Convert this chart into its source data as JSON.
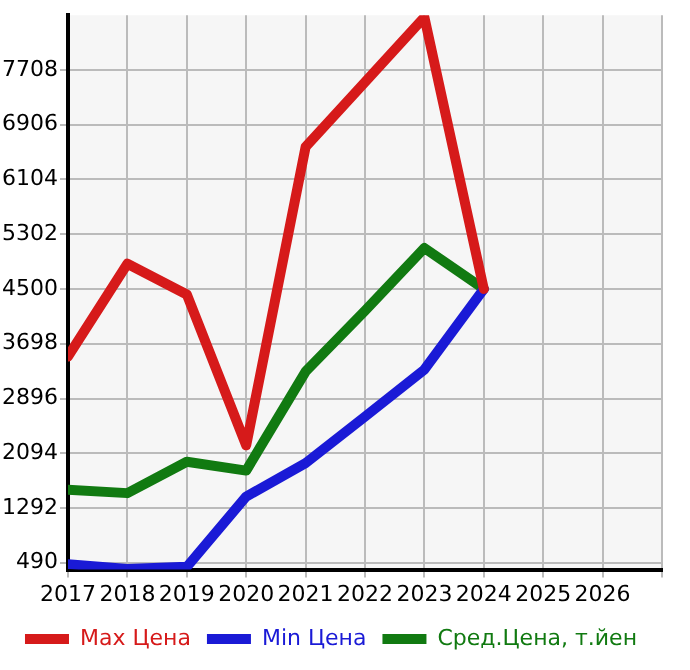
{
  "chart_data": {
    "type": "line",
    "x": [
      2017,
      2018,
      2019,
      2020,
      2021,
      2022,
      2023,
      2024
    ],
    "series": [
      {
        "name": "Max Цена",
        "color": "#d61a1a",
        "values": [
          3510,
          4870,
          4420,
          2210,
          6580,
          7530,
          8480,
          4500
        ]
      },
      {
        "name": "Min Цена",
        "color": "#1a1ad6",
        "values": [
          470,
          400,
          430,
          1460,
          1950,
          2630,
          3320,
          4500
        ]
      },
      {
        "name": "Сред.Цена, т.йен",
        "color": "#117a11",
        "values": [
          1560,
          1510,
          1970,
          1840,
          3290,
          4180,
          5100,
          4500
        ]
      }
    ],
    "xlim": [
      2017,
      2027
    ],
    "xticks": [
      2017,
      2018,
      2019,
      2020,
      2021,
      2022,
      2023,
      2024,
      2025,
      2026,
      {
        "value": 2027,
        "label": null
      }
    ],
    "ylim": [
      390,
      8510
    ],
    "yticks": [
      490,
      1292,
      2094,
      2896,
      3698,
      4500,
      5302,
      6104,
      6906,
      7708
    ],
    "grid": true,
    "legend": "bottom"
  }
}
